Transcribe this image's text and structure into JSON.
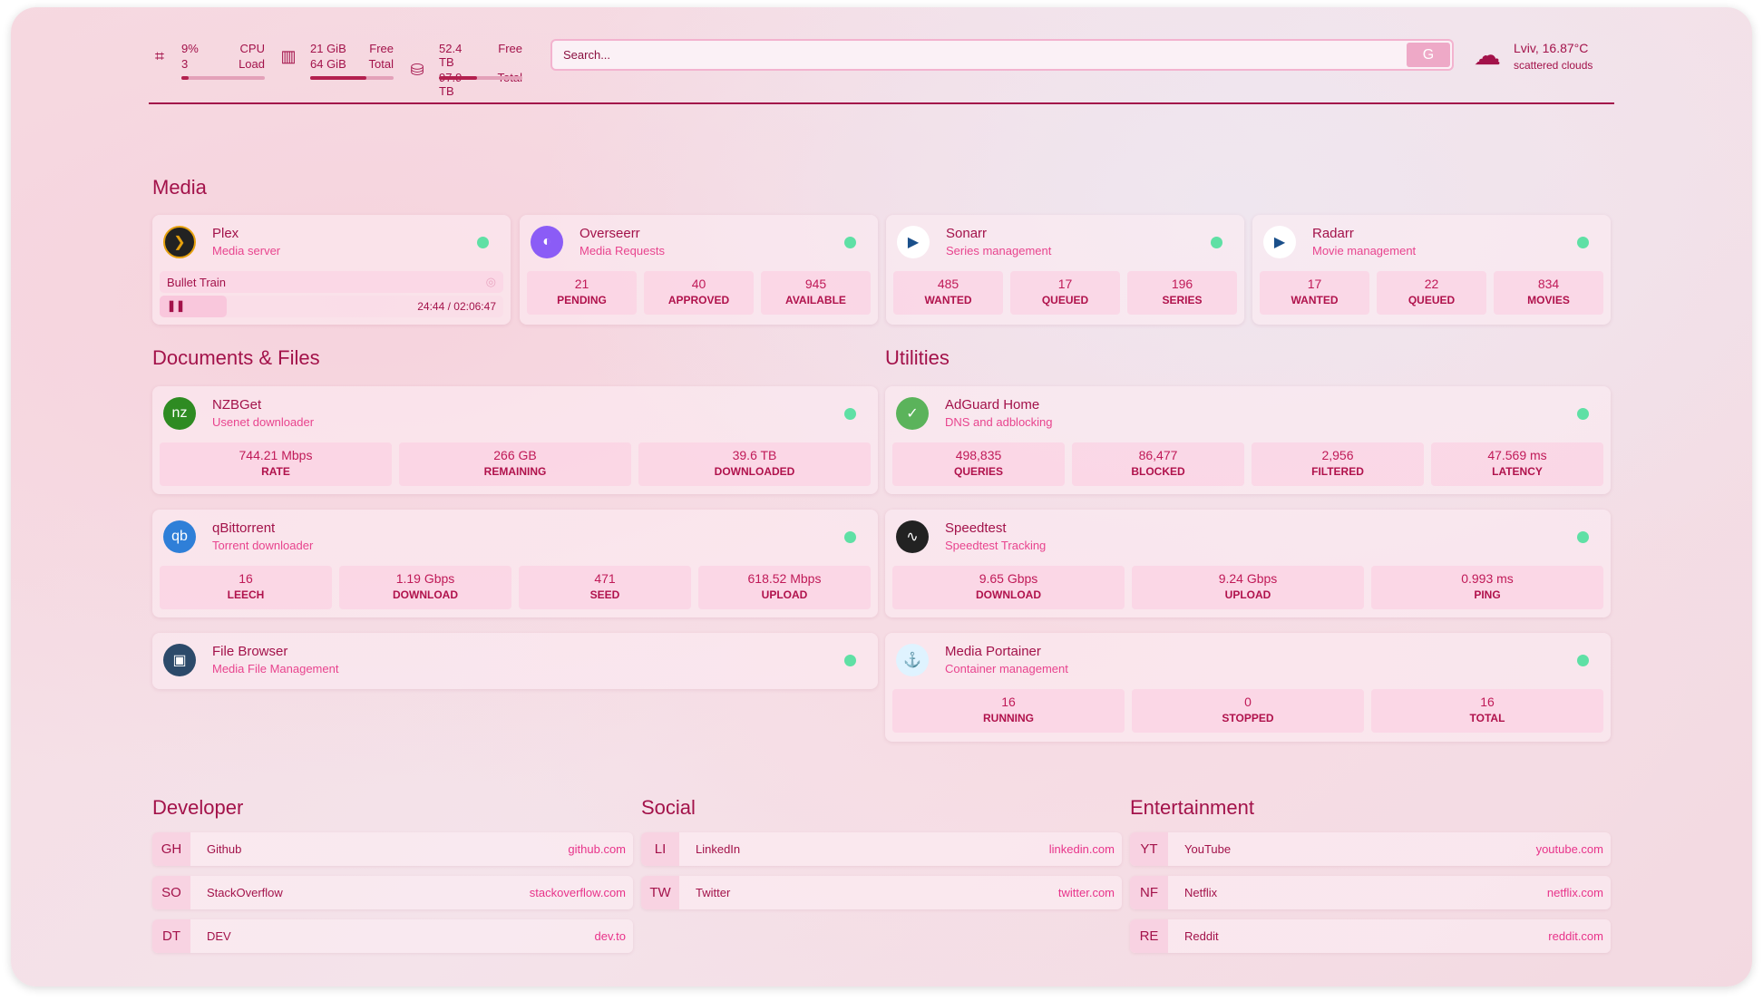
{
  "resources": {
    "cpu": {
      "icon": "cpu-icon",
      "v1": "9%",
      "l1": "CPU",
      "v2": "3",
      "l2": "Load",
      "fill": 9
    },
    "memory": {
      "icon": "memory-icon",
      "v1": "21 GiB",
      "l1": "Free",
      "v2": "64 GiB",
      "l2": "Total",
      "fill": 67
    },
    "disk": {
      "icon": "disk-icon",
      "v1": "52.4 TB",
      "l1": "Free",
      "v2": "97.9 TB",
      "l2": "Total",
      "fill": 46
    }
  },
  "search": {
    "placeholder": "Search...",
    "engine": "G"
  },
  "weather": {
    "icon": "cloud-icon",
    "location": "Lviv, 16.87°C",
    "description": "scattered clouds"
  },
  "sections": {
    "media": "Media",
    "documents": "Documents & Files",
    "utilities": "Utilities",
    "developer": "Developer",
    "social": "Social",
    "entertainment": "Entertainment"
  },
  "plex": {
    "title": "Plex",
    "subtitle": "Media server",
    "now_playing": "Bullet Train",
    "time": "24:44 / 02:06:47",
    "progress": 19.6
  },
  "media": [
    {
      "title": "Overseerr",
      "subtitle": "Media Requests",
      "stats": [
        {
          "v": "21",
          "l": "PENDING"
        },
        {
          "v": "40",
          "l": "APPROVED"
        },
        {
          "v": "945",
          "l": "AVAILABLE"
        }
      ]
    },
    {
      "title": "Sonarr",
      "subtitle": "Series management",
      "stats": [
        {
          "v": "485",
          "l": "WANTED"
        },
        {
          "v": "17",
          "l": "QUEUED"
        },
        {
          "v": "196",
          "l": "SERIES"
        }
      ]
    },
    {
      "title": "Radarr",
      "subtitle": "Movie management",
      "stats": [
        {
          "v": "17",
          "l": "WANTED"
        },
        {
          "v": "22",
          "l": "QUEUED"
        },
        {
          "v": "834",
          "l": "MOVIES"
        }
      ]
    }
  ],
  "documents": [
    {
      "title": "NZBGet",
      "subtitle": "Usenet downloader",
      "stats": [
        {
          "v": "744.21 Mbps",
          "l": "RATE"
        },
        {
          "v": "266 GB",
          "l": "REMAINING"
        },
        {
          "v": "39.6 TB",
          "l": "DOWNLOADED"
        }
      ]
    },
    {
      "title": "qBittorrent",
      "subtitle": "Torrent downloader",
      "stats": [
        {
          "v": "16",
          "l": "LEECH"
        },
        {
          "v": "1.19 Gbps",
          "l": "DOWNLOAD"
        },
        {
          "v": "471",
          "l": "SEED"
        },
        {
          "v": "618.52 Mbps",
          "l": "UPLOAD"
        }
      ]
    },
    {
      "title": "File Browser",
      "subtitle": "Media File Management",
      "stats": []
    }
  ],
  "utilities": [
    {
      "title": "AdGuard Home",
      "subtitle": "DNS and adblocking",
      "stats": [
        {
          "v": "498,835",
          "l": "QUERIES"
        },
        {
          "v": "86,477",
          "l": "BLOCKED"
        },
        {
          "v": "2,956",
          "l": "FILTERED"
        },
        {
          "v": "47.569 ms",
          "l": "LATENCY"
        }
      ]
    },
    {
      "title": "Speedtest",
      "subtitle": "Speedtest Tracking",
      "stats": [
        {
          "v": "9.65 Gbps",
          "l": "DOWNLOAD"
        },
        {
          "v": "9.24 Gbps",
          "l": "UPLOAD"
        },
        {
          "v": "0.993 ms",
          "l": "PING"
        }
      ]
    },
    {
      "title": "Media Portainer",
      "subtitle": "Container management",
      "stats": [
        {
          "v": "16",
          "l": "RUNNING"
        },
        {
          "v": "0",
          "l": "STOPPED"
        },
        {
          "v": "16",
          "l": "TOTAL"
        }
      ]
    }
  ],
  "bookmarks": {
    "developer": [
      {
        "abbr": "GH",
        "name": "Github",
        "url": "github.com"
      },
      {
        "abbr": "SO",
        "name": "StackOverflow",
        "url": "stackoverflow.com"
      },
      {
        "abbr": "DT",
        "name": "DEV",
        "url": "dev.to"
      }
    ],
    "social": [
      {
        "abbr": "LI",
        "name": "LinkedIn",
        "url": "linkedin.com"
      },
      {
        "abbr": "TW",
        "name": "Twitter",
        "url": "twitter.com"
      }
    ],
    "entertainment": [
      {
        "abbr": "YT",
        "name": "YouTube",
        "url": "youtube.com"
      },
      {
        "abbr": "NF",
        "name": "Netflix",
        "url": "netflix.com"
      },
      {
        "abbr": "RE",
        "name": "Reddit",
        "url": "reddit.com"
      }
    ]
  },
  "colors": {
    "accent": "#a3124a",
    "subtitle": "#e8448e",
    "status_up": "#5fe0a5"
  }
}
